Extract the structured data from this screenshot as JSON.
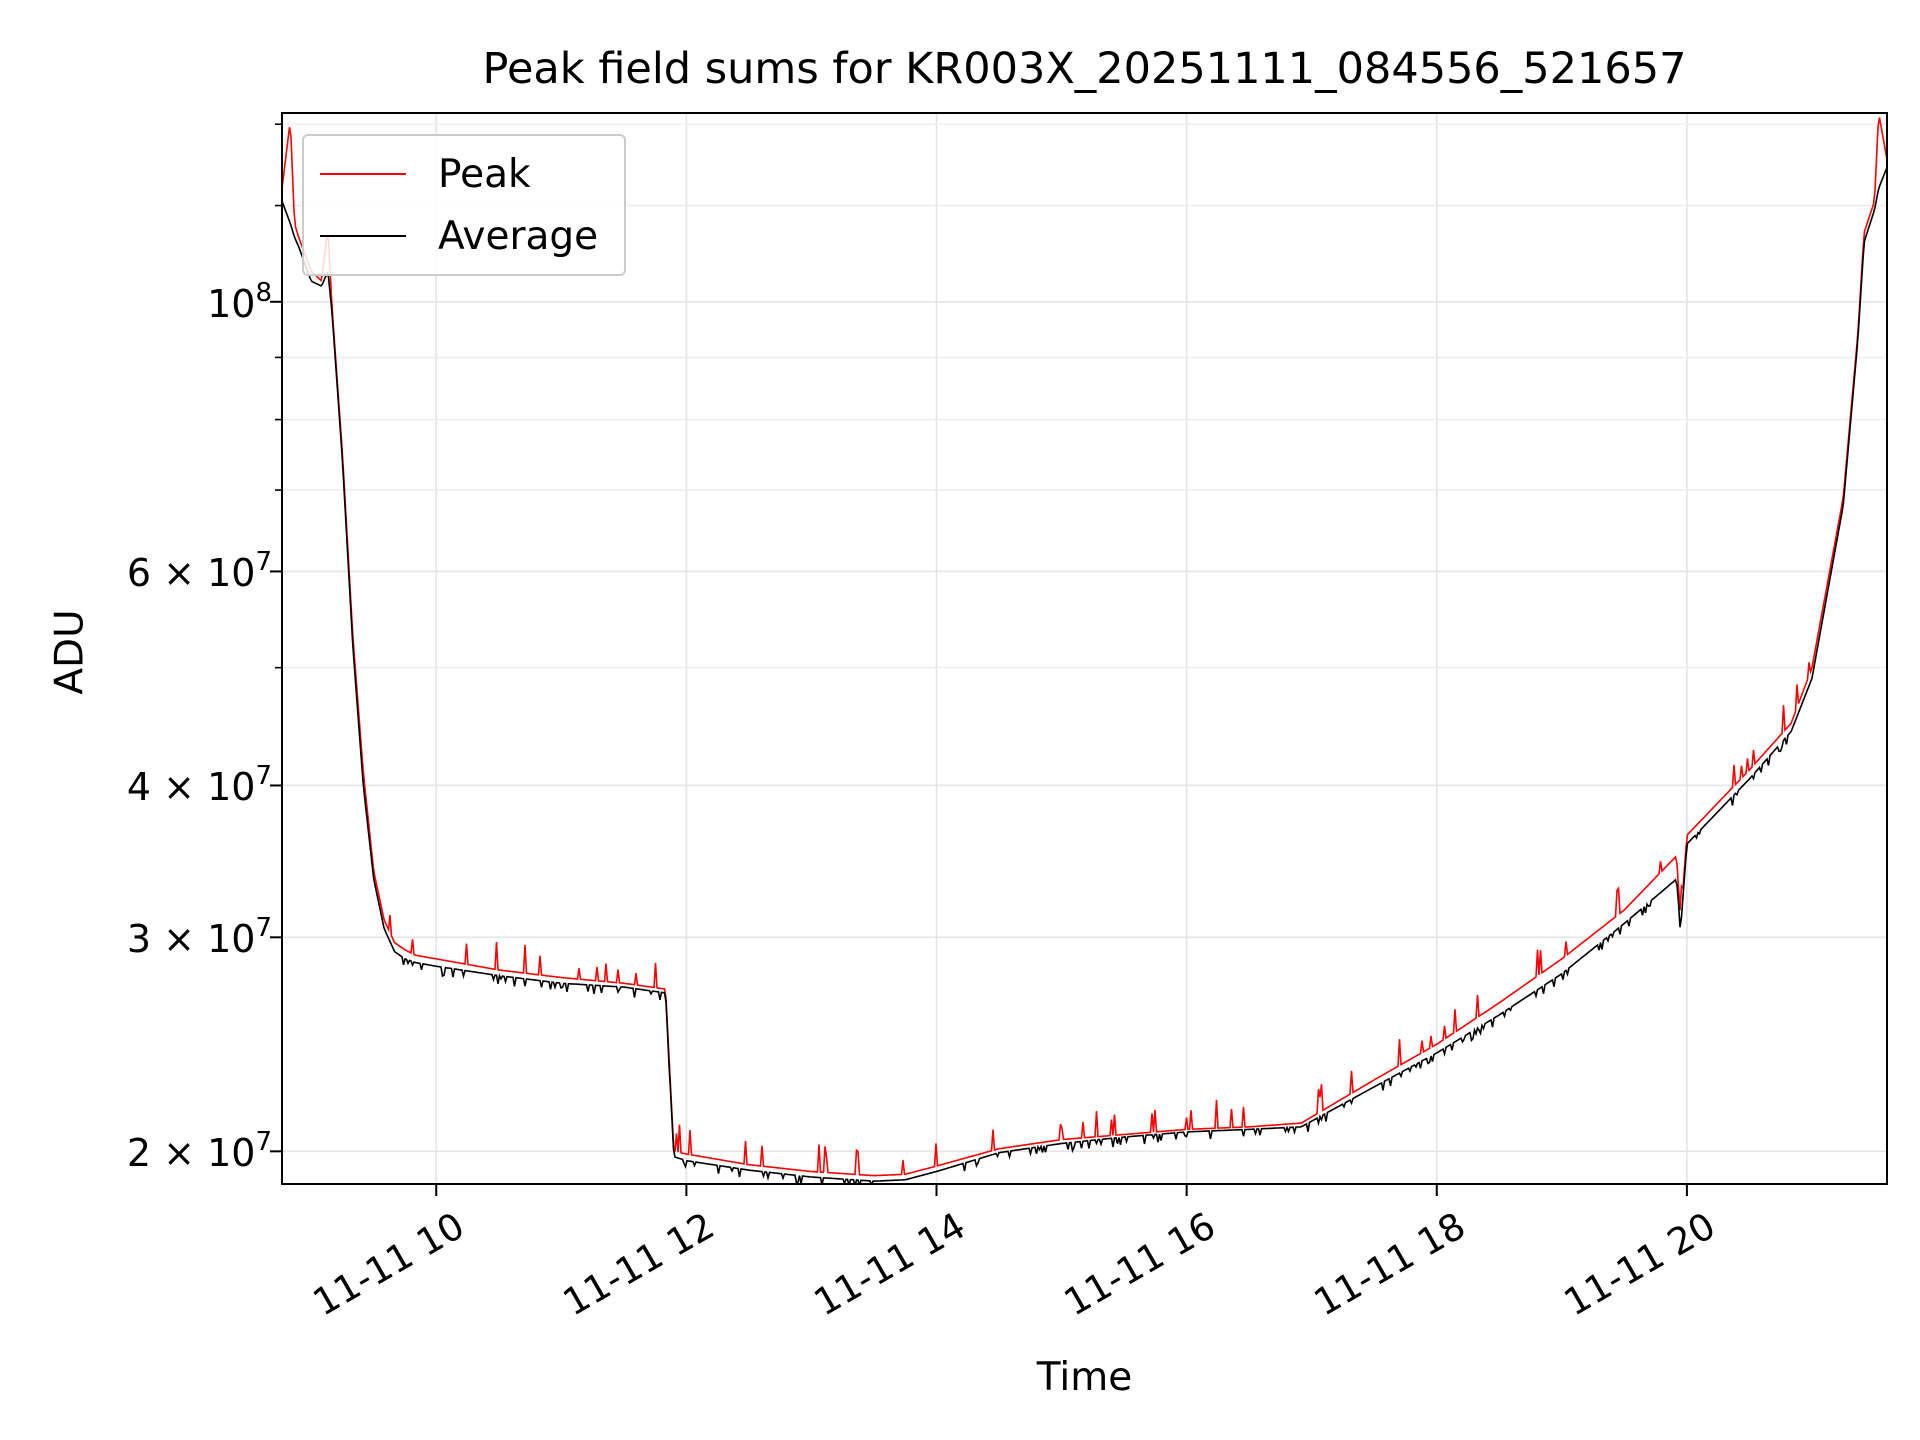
{
  "chart_data": {
    "type": "line",
    "title": "Peak field sums for KR003X_20251111_084556_521657",
    "xlabel": "Time",
    "ylabel": "ADU",
    "y_scale": "log",
    "xlim": [
      "2025-11-11 08:46",
      "2025-11-11 21:36"
    ],
    "ylim": [
      18800000,
      143000000
    ],
    "x_ticks": [
      "11-11 10",
      "11-11 12",
      "11-11 14",
      "11-11 16",
      "11-11 18",
      "11-11 20"
    ],
    "y_ticks": [
      {
        "base": "",
        "mantissa": "10",
        "exponent": "8",
        "value": 100000000
      },
      {
        "base": "6 × ",
        "mantissa": "10",
        "exponent": "7",
        "value": 60000000
      },
      {
        "base": "4 × ",
        "mantissa": "10",
        "exponent": "7",
        "value": 40000000
      },
      {
        "base": "3 × ",
        "mantissa": "10",
        "exponent": "7",
        "value": 30000000
      },
      {
        "base": "2 × ",
        "mantissa": "10",
        "exponent": "7",
        "value": 20000000
      }
    ],
    "grid": true,
    "legend_position": "top-left",
    "series": [
      {
        "name": "Peak",
        "color": "#ff0000"
      },
      {
        "name": "Average",
        "color": "#000000"
      }
    ],
    "x": [
      "08:46",
      "08:50",
      "08:52",
      "08:54",
      "09:00",
      "09:05",
      "09:08",
      "09:10",
      "09:15",
      "09:20",
      "09:25",
      "09:30",
      "09:35",
      "09:40",
      "09:45",
      "09:50",
      "10:00",
      "10:30",
      "11:00",
      "11:30",
      "11:50",
      "11:54",
      "12:00",
      "12:30",
      "13:00",
      "13:30",
      "13:45",
      "14:00",
      "14:30",
      "15:00",
      "15:30",
      "16:00",
      "16:30",
      "16:55",
      "17:30",
      "18:00",
      "18:30",
      "19:00",
      "19:30",
      "19:55",
      "19:57",
      "20:00",
      "20:30",
      "20:50",
      "21:00",
      "21:15",
      "21:22",
      "21:25",
      "21:30",
      "21:32",
      "21:36"
    ],
    "average_values": [
      121000000,
      116000000,
      113000000,
      111000000,
      104000000,
      103000000,
      106000000,
      98000000,
      74000000,
      52000000,
      40000000,
      33500000,
      30500000,
      29200000,
      28800000,
      28600000,
      28400000,
      27900000,
      27500000,
      27300000,
      27000000,
      19800000,
      19650000,
      19300000,
      19050000,
      18900000,
      18950000,
      19250000,
      19950000,
      20300000,
      20550000,
      20750000,
      20850000,
      20950000,
      22600000,
      24100000,
      25900000,
      28000000,
      30800000,
      33500000,
      30500000,
      35800000,
      40500000,
      44300000,
      49000000,
      68000000,
      93000000,
      112000000,
      119000000,
      124000000,
      129000000
    ],
    "peak_values": [
      124000000,
      141000000,
      116000000,
      113000000,
      106000000,
      104000000,
      115000000,
      99000000,
      75000000,
      53000000,
      41000000,
      34000000,
      31000000,
      29700000,
      29300000,
      29000000,
      28800000,
      28200000,
      27800000,
      27500000,
      27200000,
      20000000,
      19900000,
      19500000,
      19250000,
      19100000,
      19150000,
      19450000,
      20100000,
      20450000,
      20650000,
      20850000,
      20950000,
      21100000,
      22900000,
      24500000,
      26500000,
      28800000,
      31600000,
      35000000,
      31000000,
      36400000,
      41200000,
      45000000,
      50000000,
      69000000,
      94000000,
      114000000,
      121000000,
      143000000,
      131000000
    ]
  }
}
